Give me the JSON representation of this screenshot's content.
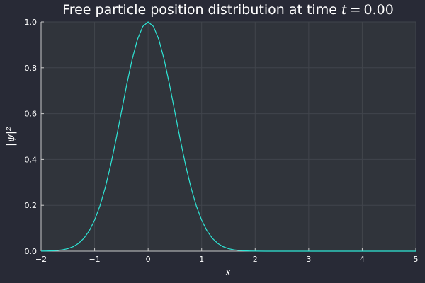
{
  "chart_data": {
    "type": "line",
    "title": "Free particle position distribution at time",
    "title_var": "t",
    "title_eq": "=",
    "title_value": "0.00",
    "xlabel": "x",
    "ylabel": "|ψ|²",
    "xlim": [
      -2,
      5
    ],
    "ylim": [
      0,
      1
    ],
    "xticks": [
      -2,
      -1,
      0,
      1,
      2,
      3,
      4,
      5
    ],
    "xtick_labels": [
      "−2",
      "−1",
      "0",
      "1",
      "2",
      "3",
      "4",
      "5"
    ],
    "yticks": [
      0,
      0.2,
      0.4,
      0.6,
      0.8,
      1.0
    ],
    "ytick_labels": [
      "0.0",
      "0.2",
      "0.4",
      "0.6",
      "0.8",
      "1.0"
    ],
    "grid": true,
    "legend": "none",
    "colors": {
      "background": "#282a36",
      "plot_area": "#30343b",
      "line": "#2ee6d6",
      "grid": "#41454c",
      "text": "#ffffff"
    },
    "series": [
      {
        "x": [
          -2.0,
          -1.9,
          -1.8,
          -1.7,
          -1.6,
          -1.5,
          -1.4,
          -1.3,
          -1.2,
          -1.1,
          -1.0,
          -0.9,
          -0.8,
          -0.7,
          -0.6,
          -0.5,
          -0.4,
          -0.3,
          -0.2,
          -0.1,
          0.0,
          0.1,
          0.2,
          0.3,
          0.4,
          0.5,
          0.6,
          0.7,
          0.8,
          0.9,
          1.0,
          1.1,
          1.2,
          1.3,
          1.4,
          1.5,
          1.6,
          1.7,
          1.8,
          1.9,
          2.0,
          2.2,
          2.5,
          3.0,
          3.5,
          4.0,
          4.5,
          5.0
        ],
        "values": [
          0.0003,
          0.0007,
          0.0015,
          0.0031,
          0.006,
          0.0111,
          0.0198,
          0.034,
          0.0561,
          0.0889,
          0.1353,
          0.1979,
          0.278,
          0.3753,
          0.4868,
          0.6065,
          0.7261,
          0.8353,
          0.9231,
          0.9802,
          1.0,
          0.9802,
          0.9231,
          0.8353,
          0.7261,
          0.6065,
          0.4868,
          0.3753,
          0.278,
          0.1979,
          0.1353,
          0.0889,
          0.0561,
          0.034,
          0.0198,
          0.0111,
          0.006,
          0.0031,
          0.0015,
          0.0007,
          0.0003,
          0.0001,
          0.0,
          0.0,
          0.0,
          0.0,
          0.0,
          0.0
        ]
      }
    ]
  }
}
